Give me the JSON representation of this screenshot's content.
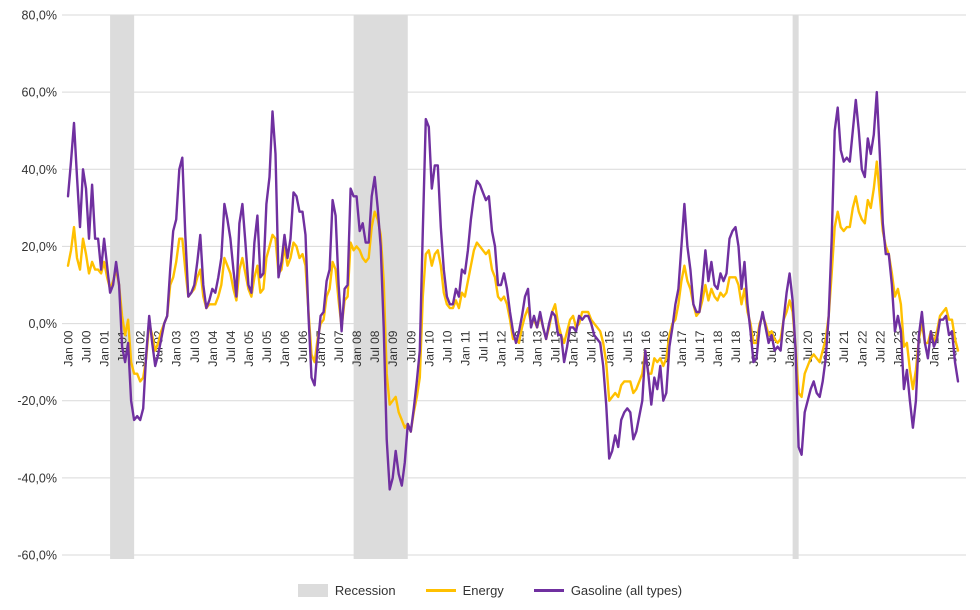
{
  "chart_data": {
    "type": "line",
    "title": "",
    "ylim": [
      -60,
      80
    ],
    "y_ticks": [
      {
        "value": 80,
        "label": "80,0%"
      },
      {
        "value": 60,
        "label": "60,0%"
      },
      {
        "value": 40,
        "label": "40,0%"
      },
      {
        "value": 20,
        "label": "20,0%"
      },
      {
        "value": 0,
        "label": "0,0%"
      },
      {
        "value": -20,
        "label": "-20,0%"
      },
      {
        "value": -40,
        "label": "-40,0%"
      },
      {
        "value": -60,
        "label": "-60,0%"
      }
    ],
    "x_tick_every": 6,
    "x_tick_labels": [
      "Jan 00",
      "Jul 00",
      "Jan 01",
      "Jul 01",
      "Jan 02",
      "Jul 02",
      "Jan 03",
      "Jul 03",
      "Jan 04",
      "Jul 04",
      "Jan 05",
      "Jul 05",
      "Jan 06",
      "Jul 06",
      "Jan 07",
      "Jul 07",
      "Jan 08",
      "Jul 08",
      "Jan 09",
      "Jul 09",
      "Jan 10",
      "Jul 10",
      "Jan 11",
      "Jul 11",
      "Jan 12",
      "Jul 12",
      "Jan 13",
      "Jul 13",
      "Jan 14",
      "Jul 14",
      "Jan 15",
      "Jul 15",
      "Jan 16",
      "Jul 16",
      "Jan 17",
      "Jul 17",
      "Jan 18",
      "Jul 18",
      "Jan 19",
      "Jul 19",
      "Jan 20",
      "Jul 20",
      "Jan 21",
      "Jul 21",
      "Jan 22",
      "Jul 22",
      "Jan 23",
      "Jul 23",
      "Jan 24",
      "Jul 24"
    ],
    "colors": {
      "recession": "#dcdcdc",
      "grid": "#d9d9d9",
      "axis_text": "#333333"
    },
    "recessions": [
      {
        "start_month_index": 14,
        "end_month_index": 22
      },
      {
        "start_month_index": 95,
        "end_month_index": 113
      },
      {
        "start_month_index": 241,
        "end_month_index": 243
      }
    ],
    "series": [
      {
        "name": "Energy",
        "color": "#FFC000",
        "values": [
          15,
          19,
          25,
          17,
          14,
          22,
          18,
          13,
          16,
          14,
          14,
          13,
          16,
          12,
          9,
          11,
          14,
          10,
          2,
          -3,
          1,
          -10,
          -13,
          -13,
          -15,
          -14,
          -9,
          0,
          -3,
          -7,
          -5,
          -2,
          0,
          2,
          10,
          12,
          16,
          22,
          22,
          14,
          7,
          8,
          9,
          12,
          14,
          7,
          4,
          5,
          5,
          5,
          7,
          10,
          17,
          15,
          13,
          9,
          6,
          14,
          17,
          13,
          9,
          7,
          12,
          15,
          8,
          9,
          17,
          20,
          23,
          22,
          13,
          14,
          20,
          15,
          17,
          21,
          20,
          17,
          18,
          15,
          3,
          -8,
          -10,
          -4,
          0,
          1,
          7,
          9,
          16,
          14,
          6,
          -1,
          6,
          7,
          21,
          19,
          20,
          19,
          17,
          16,
          17,
          25,
          29,
          27,
          23,
          11,
          -13,
          -21,
          -20,
          -19,
          -23,
          -25,
          -27,
          -26,
          -28,
          -23,
          -19,
          -14,
          7,
          18,
          19,
          15,
          18,
          19,
          15,
          8,
          5,
          4,
          4,
          6,
          4,
          8,
          7,
          11,
          15,
          19,
          21,
          20,
          19,
          18,
          19,
          14,
          12,
          7,
          6,
          7,
          5,
          1,
          -4,
          -4,
          -5,
          -1,
          2,
          4,
          0,
          1,
          -1,
          2,
          -1,
          -4,
          -1,
          3,
          5,
          0,
          -3,
          -5,
          -2,
          1,
          2,
          -1,
          0,
          3,
          3,
          3,
          1,
          0,
          -1,
          -2,
          -5,
          -10,
          -20,
          -19,
          -18,
          -19,
          -16,
          -15,
          -15,
          -15,
          -18,
          -17,
          -15,
          -13,
          -7,
          -13,
          -13,
          -9,
          -10,
          -9,
          -11,
          -9,
          -3,
          0,
          1,
          5,
          11,
          15,
          11,
          9,
          5,
          2,
          3,
          6,
          10,
          6,
          9,
          7,
          6,
          8,
          7,
          8,
          12,
          12,
          12,
          10,
          5,
          9,
          3,
          0,
          -5,
          -5,
          0,
          2,
          0,
          -3,
          -2,
          -4,
          -5,
          -4,
          1,
          3,
          6,
          3,
          -6,
          -18,
          -19,
          -13,
          -11,
          -9,
          -8,
          -9,
          -10,
          -7,
          -4,
          2,
          13,
          25,
          29,
          25,
          24,
          25,
          25,
          30,
          33,
          29,
          27,
          26,
          32,
          30,
          35,
          42,
          33,
          24,
          20,
          18,
          13,
          7,
          9,
          5,
          -6,
          -5,
          -12,
          -17,
          -12,
          -4,
          0,
          -5,
          -5,
          -2,
          -5,
          -2,
          2,
          3,
          4,
          1,
          1,
          -4,
          -7
        ]
      },
      {
        "name": "Gasoline (all types)",
        "color": "#7030A0",
        "values": [
          33,
          42,
          52,
          38,
          25,
          40,
          35,
          22,
          36,
          22,
          22,
          14,
          22,
          15,
          8,
          10,
          16,
          10,
          -6,
          -10,
          -5,
          -20,
          -25,
          -24,
          -25,
          -22,
          -8,
          2,
          -5,
          -11,
          -8,
          -4,
          0,
          2,
          14,
          24,
          27,
          40,
          43,
          23,
          7,
          8,
          10,
          16,
          23,
          10,
          4,
          6,
          9,
          8,
          12,
          17,
          31,
          27,
          22,
          14,
          7,
          26,
          31,
          21,
          10,
          8,
          21,
          28,
          12,
          13,
          31,
          38,
          55,
          44,
          12,
          16,
          23,
          17,
          22,
          34,
          33,
          29,
          29,
          23,
          2,
          -14,
          -16,
          -6,
          2,
          3,
          11,
          14,
          32,
          28,
          10,
          -2,
          9,
          10,
          35,
          33,
          33,
          24,
          26,
          21,
          21,
          33,
          38,
          30,
          20,
          -1,
          -30,
          -43,
          -40,
          -33,
          -39,
          -42,
          -36,
          -26,
          -28,
          -22,
          -15,
          -7,
          24,
          53,
          51,
          35,
          41,
          41,
          25,
          14,
          7,
          5,
          5,
          9,
          7,
          14,
          13,
          19,
          27,
          33,
          37,
          36,
          34,
          32,
          33,
          24,
          20,
          10,
          10,
          13,
          9,
          3,
          -2,
          -5,
          -2,
          2,
          7,
          9,
          -1,
          2,
          -1,
          3,
          -1,
          -4,
          0,
          3,
          2,
          -3,
          -3,
          -10,
          -6,
          -1,
          -1,
          -2,
          2,
          1,
          2,
          2,
          0,
          -3,
          -4,
          -5,
          -11,
          -21,
          -35,
          -33,
          -29,
          -32,
          -25,
          -23,
          -22,
          -23,
          -30,
          -28,
          -24,
          -20,
          -7,
          -13,
          -21,
          -14,
          -17,
          -11,
          -20,
          -18,
          -6,
          -1,
          5,
          9,
          20,
          31,
          20,
          14,
          5,
          3,
          3,
          10,
          19,
          11,
          16,
          10,
          9,
          13,
          11,
          13,
          22,
          24,
          25,
          20,
          9,
          16,
          5,
          -2,
          -10,
          -9,
          -1,
          3,
          -1,
          -5,
          -3,
          -7,
          -6,
          -7,
          1,
          8,
          13,
          6,
          -7,
          -32,
          -34,
          -23,
          -20,
          -17,
          -15,
          -18,
          -19,
          -15,
          -9,
          2,
          22,
          50,
          56,
          45,
          42,
          43,
          42,
          50,
          58,
          50,
          40,
          38,
          48,
          44,
          49,
          60,
          44,
          26,
          18,
          18,
          10,
          -2,
          2,
          -2,
          -17,
          -12,
          -20,
          -27,
          -20,
          -3,
          3,
          -5,
          -9,
          -2,
          -6,
          -4,
          1,
          1,
          2,
          -3,
          -2,
          -10,
          -15
        ]
      }
    ],
    "legend": [
      {
        "type": "box",
        "label": "Recession",
        "color": "#dcdcdc"
      },
      {
        "type": "line",
        "label": "Energy",
        "color": "#FFC000"
      },
      {
        "type": "line",
        "label": "Gasoline (all types)",
        "color": "#7030A0"
      }
    ]
  }
}
